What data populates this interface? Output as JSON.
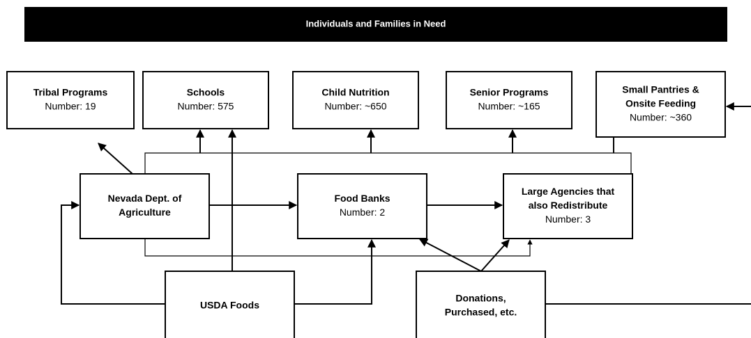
{
  "header": {
    "title": "Individuals and Families in Need"
  },
  "nodes": [
    {
      "name": [
        "Tribal Programs"
      ],
      "detail": "Number: 19"
    },
    {
      "name": [
        "Schools"
      ],
      "detail": "Number: 575"
    },
    {
      "name": [
        "Child Nutrition"
      ],
      "detail": "Number: ~650"
    },
    {
      "name": [
        "Senior Programs"
      ],
      "detail": "Number: ~165"
    },
    {
      "name": [
        "Small Pantries &",
        "Onsite Feeding"
      ],
      "detail": "Number: ~360"
    },
    {
      "name": [
        "Nevada Dept. of",
        "Agriculture"
      ]
    },
    {
      "name": [
        "Food Banks"
      ],
      "detail": "Number: 2"
    },
    {
      "name": [
        "Large Agencies that",
        "also Redistribute"
      ],
      "detail": "Number: 3"
    },
    {
      "name": [
        "USDA Foods"
      ]
    },
    {
      "name": [
        "Donations,",
        "Purchased, etc."
      ]
    }
  ]
}
